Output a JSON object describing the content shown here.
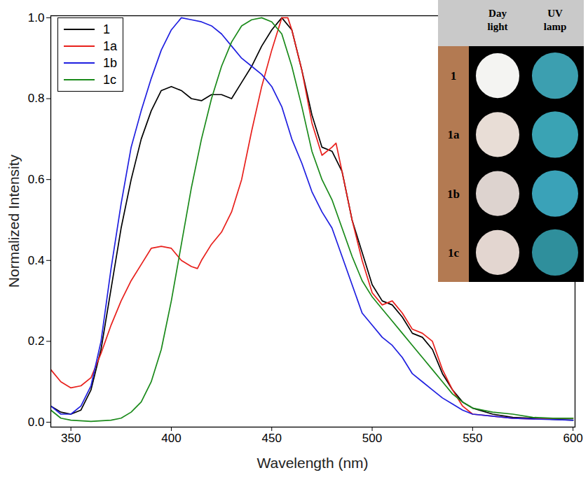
{
  "chart_data": {
    "type": "line",
    "x_label": "Wavelength (nm)",
    "y_label": "Normalized Intensity",
    "xlim": [
      340,
      601
    ],
    "xticks": [
      350,
      400,
      450,
      500,
      550,
      600
    ],
    "ylim": [
      -0.012,
      1.005
    ],
    "yticks": [
      {
        "value": 0,
        "label": "0.0"
      },
      {
        "value": 0.2,
        "label": "0.2"
      },
      {
        "value": 0.4,
        "label": "0.4"
      },
      {
        "value": 0.6,
        "label": "0.6"
      },
      {
        "value": 0.8,
        "label": "0.8"
      },
      {
        "value": 1,
        "label": "1.0"
      }
    ],
    "grid": false,
    "legend": "top-left",
    "series": [
      {
        "name": "1",
        "color": "#000000",
        "x": [
          340,
          345,
          350,
          355,
          360,
          365,
          370,
          375,
          380,
          385,
          390,
          395,
          400,
          405,
          410,
          415,
          420,
          425,
          430,
          435,
          440,
          445,
          450,
          455,
          460,
          465,
          470,
          475,
          480,
          485,
          490,
          495,
          500,
          505,
          510,
          515,
          520,
          525,
          530,
          535,
          540,
          545,
          550,
          560,
          570,
          580,
          590,
          600
        ],
        "values": [
          0.04,
          0.025,
          0.02,
          0.03,
          0.08,
          0.18,
          0.33,
          0.48,
          0.6,
          0.7,
          0.77,
          0.82,
          0.83,
          0.82,
          0.8,
          0.795,
          0.81,
          0.81,
          0.8,
          0.84,
          0.88,
          0.93,
          0.97,
          1.0,
          0.97,
          0.87,
          0.76,
          0.68,
          0.67,
          0.62,
          0.5,
          0.42,
          0.34,
          0.3,
          0.29,
          0.26,
          0.22,
          0.21,
          0.18,
          0.12,
          0.08,
          0.05,
          0.035,
          0.02,
          0.012,
          0.01,
          0.007,
          0.005
        ]
      },
      {
        "name": "1a",
        "color": "#e8201c",
        "x": [
          340,
          345,
          350,
          355,
          360,
          365,
          370,
          375,
          380,
          385,
          390,
          395,
          400,
          405,
          410,
          413,
          415,
          420,
          425,
          430,
          435,
          440,
          445,
          450,
          455,
          458,
          460,
          465,
          470,
          475,
          480,
          482,
          485,
          490,
          495,
          500,
          505,
          510,
          515,
          520,
          525,
          530,
          535,
          540,
          545,
          550,
          560,
          570,
          580,
          600
        ],
        "values": [
          0.13,
          0.1,
          0.085,
          0.09,
          0.11,
          0.17,
          0.24,
          0.3,
          0.35,
          0.39,
          0.43,
          0.435,
          0.43,
          0.4,
          0.385,
          0.38,
          0.4,
          0.44,
          0.47,
          0.52,
          0.6,
          0.72,
          0.83,
          0.92,
          1.0,
          1.0,
          0.97,
          0.87,
          0.74,
          0.66,
          0.68,
          0.69,
          0.62,
          0.5,
          0.4,
          0.32,
          0.29,
          0.3,
          0.27,
          0.23,
          0.22,
          0.2,
          0.13,
          0.08,
          0.04,
          0.02,
          0.015,
          0.01,
          0.008,
          0.01
        ]
      },
      {
        "name": "1b",
        "color": "#1f1fe0",
        "x": [
          340,
          345,
          350,
          355,
          360,
          365,
          370,
          375,
          380,
          385,
          390,
          395,
          400,
          405,
          410,
          415,
          420,
          425,
          430,
          435,
          440,
          445,
          450,
          455,
          460,
          465,
          470,
          475,
          480,
          485,
          490,
          495,
          500,
          505,
          510,
          515,
          520,
          525,
          530,
          535,
          540,
          545,
          550,
          560,
          570,
          580,
          600
        ],
        "values": [
          0.04,
          0.02,
          0.02,
          0.04,
          0.09,
          0.2,
          0.38,
          0.54,
          0.68,
          0.77,
          0.85,
          0.92,
          0.97,
          1.0,
          0.995,
          0.99,
          0.98,
          0.96,
          0.93,
          0.9,
          0.88,
          0.86,
          0.83,
          0.78,
          0.7,
          0.64,
          0.57,
          0.52,
          0.48,
          0.41,
          0.34,
          0.27,
          0.24,
          0.21,
          0.19,
          0.16,
          0.12,
          0.1,
          0.08,
          0.06,
          0.045,
          0.03,
          0.02,
          0.015,
          0.01,
          0.008,
          0.005
        ]
      },
      {
        "name": "1c",
        "color": "#1a8a1a",
        "x": [
          340,
          345,
          350,
          360,
          370,
          375,
          380,
          385,
          390,
          395,
          400,
          405,
          410,
          415,
          420,
          425,
          430,
          435,
          440,
          445,
          450,
          455,
          460,
          465,
          470,
          475,
          480,
          485,
          490,
          495,
          500,
          505,
          510,
          515,
          520,
          525,
          530,
          535,
          540,
          545,
          550,
          560,
          570,
          580,
          590,
          600
        ],
        "values": [
          0.03,
          0.01,
          0.005,
          0.002,
          0.005,
          0.01,
          0.025,
          0.05,
          0.1,
          0.18,
          0.3,
          0.44,
          0.58,
          0.7,
          0.8,
          0.88,
          0.94,
          0.98,
          0.995,
          1.0,
          0.99,
          0.96,
          0.88,
          0.78,
          0.67,
          0.6,
          0.55,
          0.48,
          0.41,
          0.35,
          0.31,
          0.28,
          0.25,
          0.22,
          0.19,
          0.16,
          0.13,
          0.1,
          0.07,
          0.05,
          0.035,
          0.025,
          0.02,
          0.012,
          0.01,
          0.01
        ]
      }
    ],
    "inset": {
      "columns": [
        "Day light",
        "UV lamp"
      ],
      "rows": [
        "1",
        "1a",
        "1b",
        "1c"
      ]
    }
  }
}
